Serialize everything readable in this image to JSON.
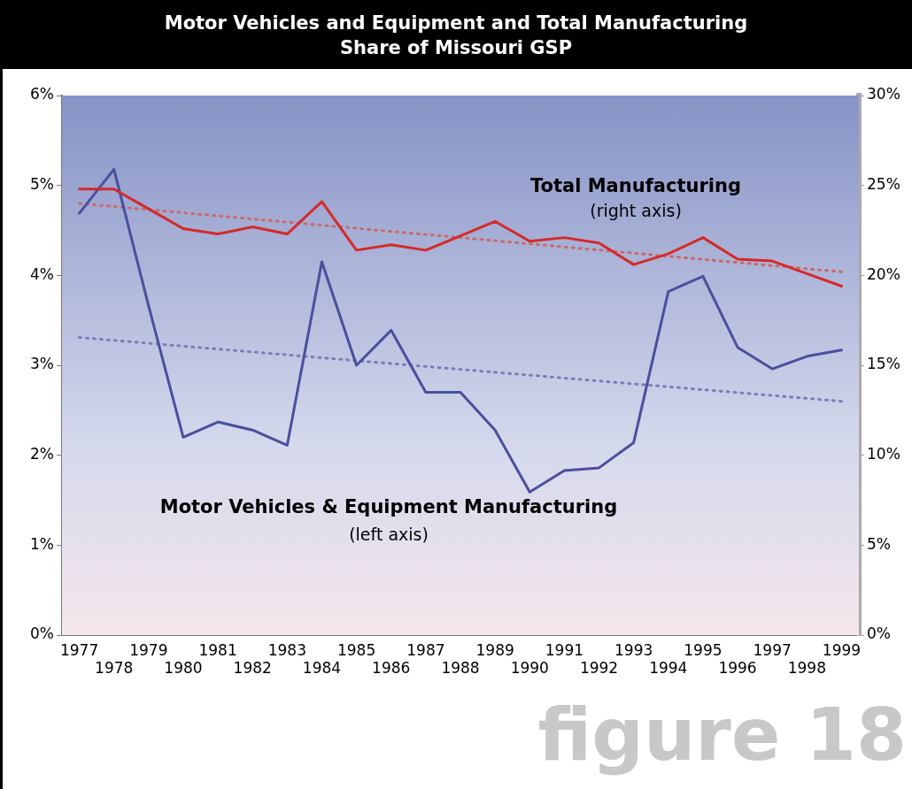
{
  "chart_data": {
    "type": "line",
    "title": "Motor Vehicles and Equipment and Total Manufacturing",
    "subtitle": "Share of Missouri GSP",
    "categories": [
      "1977",
      "1978",
      "1979",
      "1980",
      "1981",
      "1982",
      "1983",
      "1984",
      "1985",
      "1986",
      "1987",
      "1988",
      "1989",
      "1990",
      "1991",
      "1992",
      "1993",
      "1994",
      "1995",
      "1996",
      "1997",
      "1998",
      "1999"
    ],
    "series": [
      {
        "name": "Total Manufacturing",
        "color": "#d42a2a",
        "axis": "y2",
        "line_style": "solid",
        "values": [
          24.8,
          24.8,
          23.7,
          22.6,
          22.3,
          22.7,
          22.3,
          24.1,
          21.4,
          21.7,
          21.4,
          22.2,
          23.0,
          21.9,
          22.1,
          21.8,
          20.6,
          21.2,
          22.1,
          20.9,
          20.8,
          20.1,
          19.4
        ]
      },
      {
        "name": "Motor Vehicles & Equipment Manufacturing",
        "color": "#4a4f9e",
        "axis": "y",
        "line_style": "solid",
        "values": [
          4.69,
          5.18,
          3.66,
          2.2,
          2.37,
          2.28,
          2.11,
          4.15,
          3.0,
          3.39,
          2.7,
          2.7,
          2.28,
          1.59,
          1.83,
          1.86,
          2.14,
          3.82,
          3.99,
          3.2,
          2.96,
          3.1,
          3.17
        ]
      },
      {
        "type": "line",
        "color": "#c96a6a",
        "axis": "y2",
        "line_style": "dotted",
        "values": [
          24.0,
          null,
          null,
          null,
          null,
          null,
          null,
          null,
          null,
          null,
          null,
          null,
          null,
          null,
          null,
          null,
          null,
          null,
          null,
          null,
          null,
          null,
          20.2
        ]
      },
      {
        "type": "line",
        "color": "#7a7fb8",
        "axis": "y",
        "line_style": "dotted",
        "values": [
          3.31,
          null,
          null,
          null,
          null,
          null,
          null,
          null,
          null,
          null,
          null,
          null,
          null,
          null,
          null,
          null,
          null,
          null,
          null,
          null,
          null,
          null,
          2.6
        ]
      }
    ],
    "marker": "none",
    "ylim": [
      0,
      6
    ],
    "yticks": [
      {
        "value": 0,
        "label": "0%"
      },
      {
        "value": 1,
        "label": "1%"
      },
      {
        "value": 2,
        "label": "2%"
      },
      {
        "value": 3,
        "label": "3%"
      },
      {
        "value": 4,
        "label": "4%"
      },
      {
        "value": 5,
        "label": "5%"
      },
      {
        "value": 6,
        "label": "6%"
      }
    ],
    "y2lim": [
      0,
      30
    ],
    "y2ticks": [
      {
        "value": 0,
        "label": "0%"
      },
      {
        "value": 5,
        "label": "5%"
      },
      {
        "value": 10,
        "label": "10%"
      },
      {
        "value": 15,
        "label": "15%"
      },
      {
        "value": 20,
        "label": "20%"
      },
      {
        "value": 25,
        "label": "25%"
      },
      {
        "value": 30,
        "label": "30%"
      }
    ],
    "annotations": [
      "(right axis)",
      "(left axis)",
      "figure 18"
    ]
  }
}
